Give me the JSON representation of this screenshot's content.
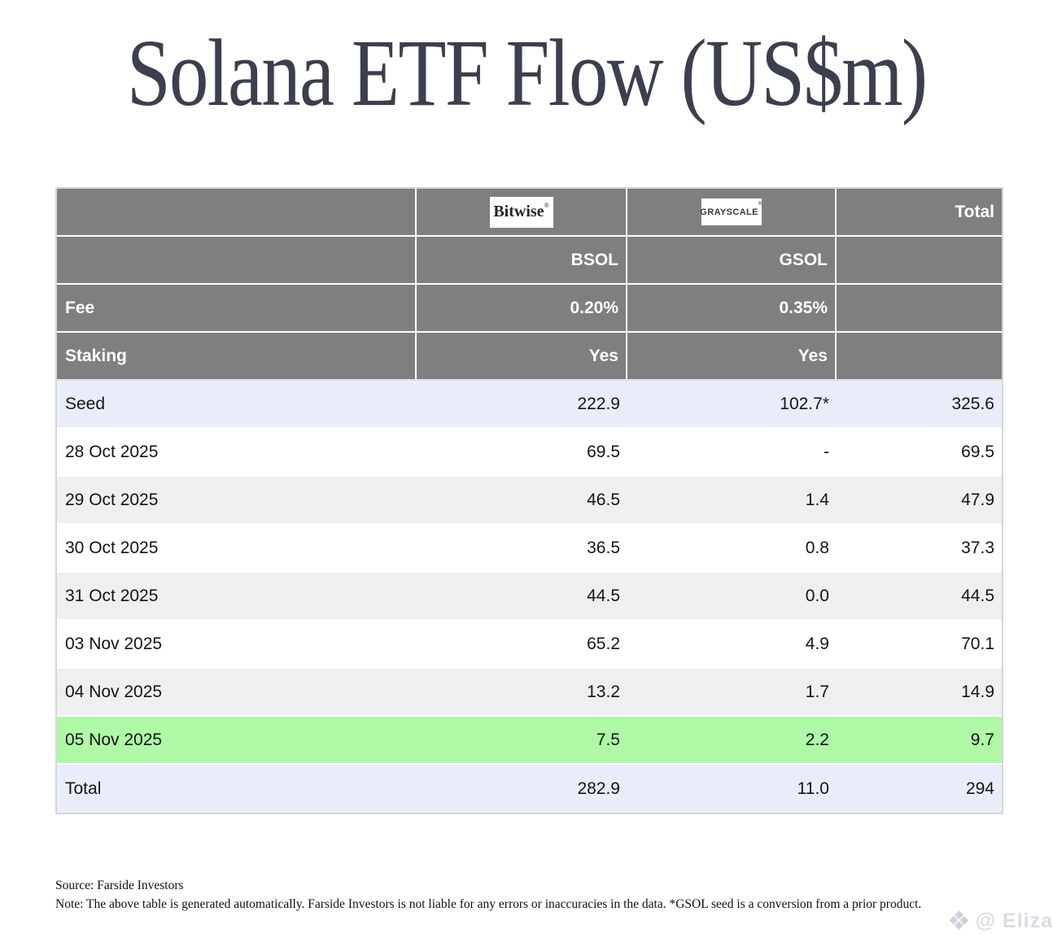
{
  "title": "Solana ETF Flow (US$m)",
  "header": {
    "bitwise_logo": "Bitwise",
    "bitwise_reg": "®",
    "grayscale_logo": "GRAYSCALE",
    "grayscale_reg": "®",
    "total": "Total",
    "ticker_bsol": "BSOL",
    "ticker_gsol": "GSOL",
    "fee_label": "Fee",
    "fee_bsol": "0.20%",
    "fee_gsol": "0.35%",
    "staking_label": "Staking",
    "staking_bsol": "Yes",
    "staking_gsol": "Yes"
  },
  "rows": [
    {
      "label": "Seed",
      "bsol": "222.9",
      "gsol": "102.7*",
      "total": "325.6"
    },
    {
      "label": "28 Oct 2025",
      "bsol": "69.5",
      "gsol": "-",
      "total": "69.5"
    },
    {
      "label": "29 Oct 2025",
      "bsol": "46.5",
      "gsol": "1.4",
      "total": "47.9"
    },
    {
      "label": "30 Oct 2025",
      "bsol": "36.5",
      "gsol": "0.8",
      "total": "37.3"
    },
    {
      "label": "31 Oct 2025",
      "bsol": "44.5",
      "gsol": "0.0",
      "total": "44.5"
    },
    {
      "label": "03 Nov 2025",
      "bsol": "65.2",
      "gsol": "4.9",
      "total": "70.1"
    },
    {
      "label": "04 Nov 2025",
      "bsol": "13.2",
      "gsol": "1.7",
      "total": "14.9"
    },
    {
      "label": "05 Nov 2025",
      "bsol": "7.5",
      "gsol": "2.2",
      "total": "9.7"
    },
    {
      "label": "Total",
      "bsol": "282.9",
      "gsol": "11.0",
      "total": "294"
    }
  ],
  "footer": {
    "source": "Source: Farside Investors",
    "note": "Note: The above table is generated automatically. Farside Investors is not liable for any errors or inaccuracies in the data. *GSOL seed is a conversion from a prior product."
  },
  "watermark": {
    "icon": "❖",
    "text": "@ Eliza"
  },
  "colors": {
    "header_bg": "#7f7f7f",
    "zebra_gray": "#efefef",
    "highlight_blue": "#e9edf9",
    "highlight_green": "#aef8a6",
    "title_text": "#3b3f4e"
  },
  "chart_data": {
    "type": "table",
    "title": "Solana ETF Flow (US$m)",
    "columns": [
      "",
      "BSOL (Bitwise)",
      "GSOL (Grayscale)",
      "Total"
    ],
    "fees": {
      "BSOL": "0.20%",
      "GSOL": "0.35%"
    },
    "staking": {
      "BSOL": "Yes",
      "GSOL": "Yes"
    },
    "rows": [
      [
        "Seed",
        222.9,
        "102.7*",
        325.6
      ],
      [
        "28 Oct 2025",
        69.5,
        "-",
        69.5
      ],
      [
        "29 Oct 2025",
        46.5,
        1.4,
        47.9
      ],
      [
        "30 Oct 2025",
        36.5,
        0.8,
        37.3
      ],
      [
        "31 Oct 2025",
        44.5,
        0.0,
        44.5
      ],
      [
        "03 Nov 2025",
        65.2,
        4.9,
        70.1
      ],
      [
        "04 Nov 2025",
        13.2,
        1.7,
        14.9
      ],
      [
        "05 Nov 2025",
        7.5,
        2.2,
        9.7
      ],
      [
        "Total",
        282.9,
        11.0,
        294
      ]
    ],
    "highlighted_row": "05 Nov 2025",
    "source": "Farside Investors"
  }
}
